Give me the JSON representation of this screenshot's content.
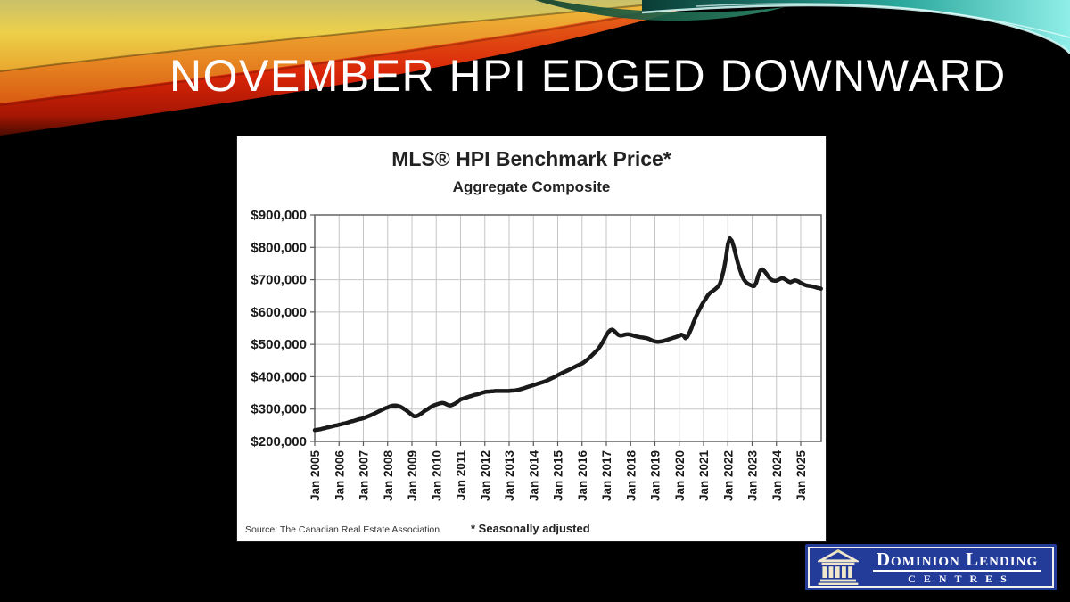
{
  "slide": {
    "title": "NOVEMBER HPI EDGED DOWNWARD"
  },
  "chart_data": {
    "type": "line",
    "title": "MLS® HPI Benchmark Price*",
    "subtitle": "Aggregate Composite",
    "source": "Source: The Canadian Real Estate Association",
    "footnote": "* Seasonally adjusted",
    "frequency": "monthly",
    "x_start": "Jan 2005",
    "x_end": "Nov 2025",
    "x_tick_labels": [
      "Jan 2005",
      "Jan 2006",
      "Jan 2007",
      "Jan 2008",
      "Jan 2009",
      "Jan 2010",
      "Jan 2011",
      "Jan 2012",
      "Jan 2013",
      "Jan 2014",
      "Jan 2015",
      "Jan 2016",
      "Jan 2017",
      "Jan 2018",
      "Jan 2019",
      "Jan 2020",
      "Jan 2021",
      "Jan 2022",
      "Jan 2023",
      "Jan 2024",
      "Jan 2025"
    ],
    "y_ticks": [
      200000,
      300000,
      400000,
      500000,
      600000,
      700000,
      800000,
      900000
    ],
    "y_tick_labels": [
      "$200,000",
      "$300,000",
      "$400,000",
      "$500,000",
      "$600,000",
      "$700,000",
      "$800,000",
      "$900,000"
    ],
    "ylim": [
      200000,
      900000
    ],
    "grid": true,
    "legend": false,
    "line_color": "#1a1a1a",
    "series": [
      {
        "name": "MLS HPI Aggregate Composite Benchmark Price (seasonally adjusted)",
        "values": [
          235000,
          236000,
          237000,
          238000,
          240000,
          241000,
          243000,
          244000,
          246000,
          247000,
          249000,
          250000,
          252000,
          253000,
          255000,
          256000,
          258000,
          260000,
          262000,
          263000,
          265000,
          267000,
          269000,
          270000,
          272000,
          274000,
          277000,
          279000,
          282000,
          285000,
          288000,
          291000,
          294000,
          297000,
          300000,
          303000,
          305000,
          308000,
          310000,
          311000,
          311000,
          310000,
          308000,
          305000,
          301000,
          297000,
          292000,
          287000,
          282000,
          278000,
          278000,
          280000,
          284000,
          288000,
          293000,
          297000,
          301000,
          305000,
          309000,
          312000,
          314000,
          316000,
          318000,
          319000,
          318000,
          315000,
          312000,
          311000,
          313000,
          316000,
          320000,
          325000,
          330000,
          332000,
          334000,
          336000,
          338000,
          340000,
          342000,
          344000,
          345000,
          347000,
          349000,
          351000,
          353000,
          354000,
          354000,
          355000,
          355000,
          356000,
          356000,
          356000,
          356000,
          356000,
          356000,
          356000,
          356000,
          357000,
          357000,
          358000,
          359000,
          360000,
          362000,
          364000,
          366000,
          368000,
          370000,
          372000,
          374000,
          376000,
          378000,
          380000,
          382000,
          384000,
          386000,
          389000,
          392000,
          395000,
          398000,
          401000,
          405000,
          408000,
          411000,
          414000,
          417000,
          420000,
          423000,
          426000,
          429000,
          432000,
          435000,
          438000,
          441000,
          445000,
          450000,
          455000,
          461000,
          467000,
          473000,
          479000,
          486000,
          495000,
          505000,
          516000,
          528000,
          538000,
          544000,
          546000,
          541000,
          534000,
          529000,
          527000,
          528000,
          530000,
          531000,
          531000,
          530000,
          528000,
          526000,
          524000,
          523000,
          522000,
          521000,
          520000,
          519000,
          517000,
          514000,
          511000,
          509000,
          508000,
          508000,
          509000,
          510000,
          512000,
          514000,
          516000,
          518000,
          520000,
          522000,
          524000,
          526000,
          530000,
          528000,
          519000,
          523000,
          535000,
          550000,
          567000,
          582000,
          596000,
          608000,
          620000,
          631000,
          640000,
          650000,
          658000,
          663000,
          667000,
          672000,
          678000,
          686000,
          705000,
          730000,
          765000,
          810000,
          828000,
          820000,
          800000,
          775000,
          750000,
          730000,
          712000,
          700000,
          692000,
          687000,
          684000,
          681000,
          680000,
          690000,
          712000,
          728000,
          732000,
          727000,
          719000,
          709000,
          702000,
          698000,
          697000,
          697000,
          700000,
          703000,
          705000,
          702000,
          698000,
          694000,
          692000,
          695000,
          698000,
          697000,
          694000,
          690000,
          687000,
          684000,
          682000,
          681000,
          680000,
          679000,
          677000,
          675000,
          674000,
          672000
        ]
      }
    ]
  },
  "logo": {
    "brand_line1": "Dominion Lending",
    "brand_line2": "CENTRES",
    "background_color": "#233c9a"
  },
  "colors": {
    "slide_background": "#000000",
    "title_text": "#fdfdfd",
    "chart_line": "#1a1a1a",
    "logo_blue": "#233c9a"
  }
}
